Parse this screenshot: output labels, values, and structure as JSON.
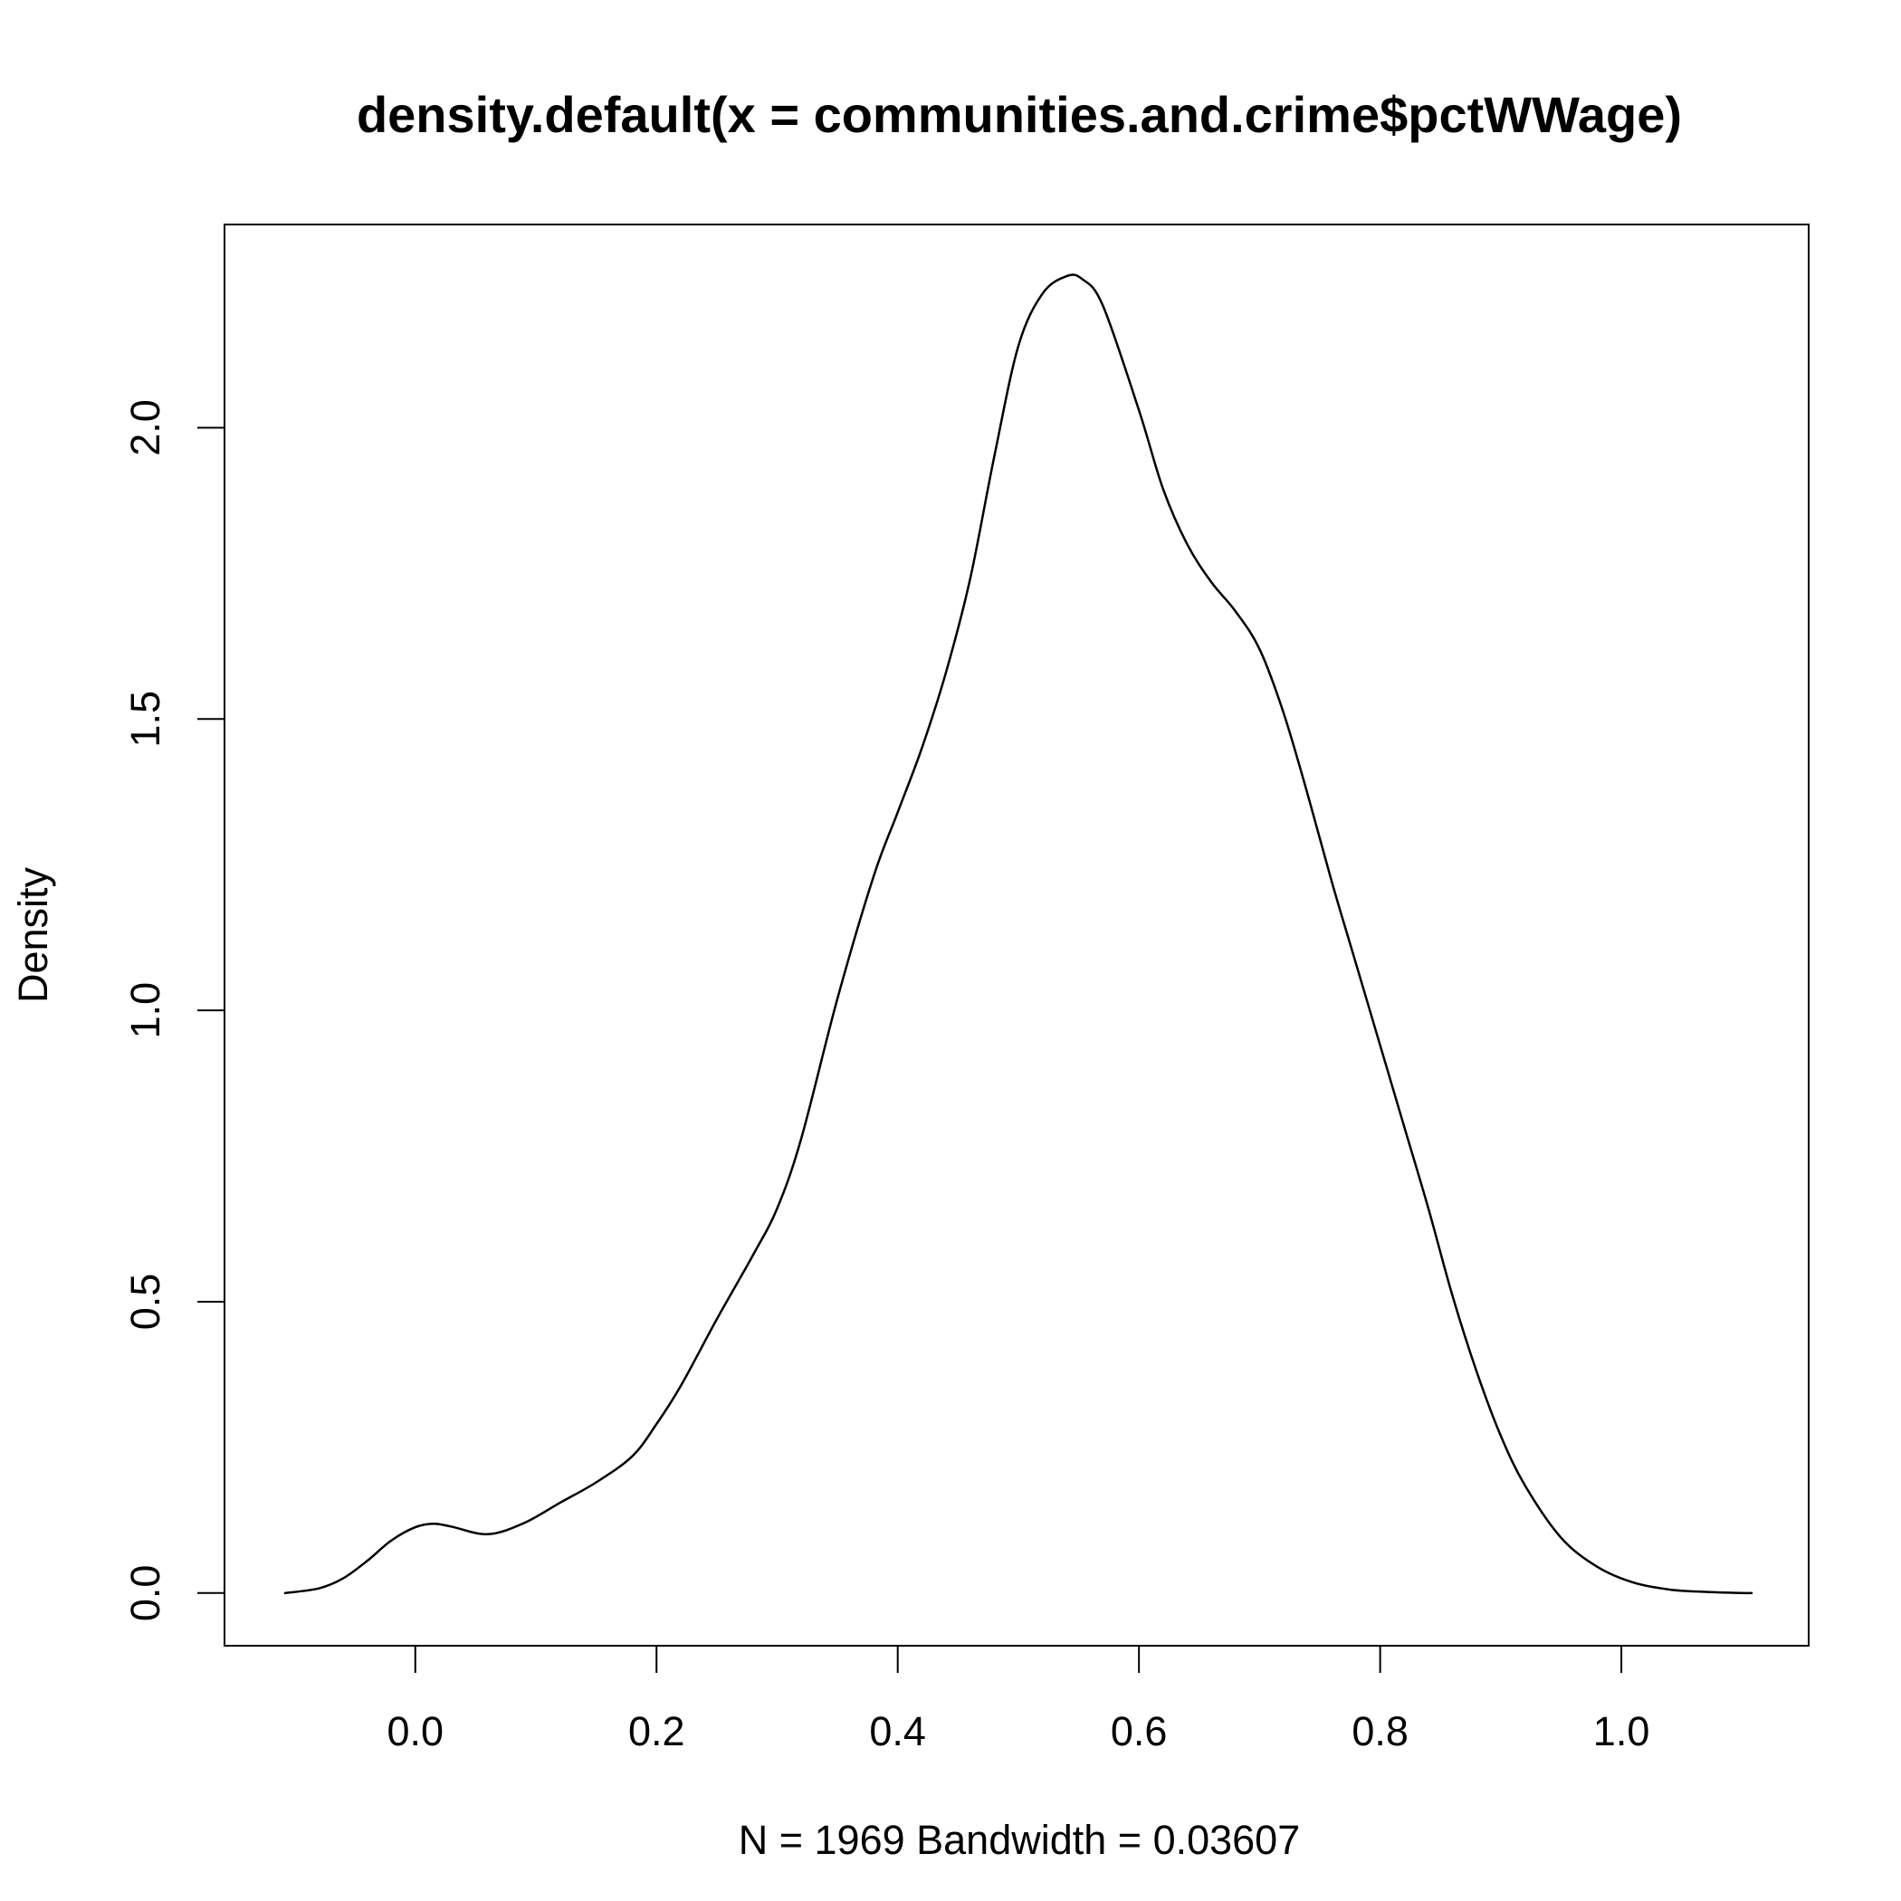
{
  "chart_data": {
    "type": "line",
    "title": "density.default(x = communities.and.crime$pctWWage)",
    "xlabel": "N = 1969   Bandwidth = 0.03607",
    "ylabel": "Density",
    "xlim": [
      -0.1582,
      1.1553
    ],
    "ylim": [
      -0.0904,
      2.3487
    ],
    "x_ticks": [
      0.0,
      0.2,
      0.4,
      0.6,
      0.8,
      1.0
    ],
    "x_tick_labels": [
      "0.0",
      "0.2",
      "0.4",
      "0.6",
      "0.8",
      "1.0"
    ],
    "y_ticks": [
      0.0,
      0.5,
      1.0,
      1.5,
      2.0
    ],
    "y_tick_labels": [
      "0.0",
      "0.5",
      "1.0",
      "1.5",
      "2.0"
    ],
    "grid": false,
    "series": [
      {
        "x": [
          -0.108,
          -0.08,
          -0.06,
          -0.04,
          -0.02,
          0.0,
          0.015,
          0.03,
          0.06,
          0.09,
          0.12,
          0.15,
          0.18,
          0.2,
          0.22,
          0.25,
          0.28,
          0.3,
          0.32,
          0.35,
          0.38,
          0.4,
          0.42,
          0.44,
          0.46,
          0.48,
          0.5,
          0.52,
          0.54,
          0.553,
          0.57,
          0.6,
          0.62,
          0.64,
          0.66,
          0.68,
          0.7,
          0.72,
          0.74,
          0.76,
          0.78,
          0.8,
          0.82,
          0.84,
          0.86,
          0.88,
          0.9,
          0.92,
          0.95,
          0.98,
          1.01,
          1.04,
          1.07,
          1.1,
          1.108
        ],
        "y": [
          0.0,
          0.008,
          0.025,
          0.055,
          0.09,
          0.113,
          0.119,
          0.114,
          0.101,
          0.12,
          0.155,
          0.19,
          0.235,
          0.29,
          0.355,
          0.47,
          0.58,
          0.66,
          0.78,
          1.02,
          1.23,
          1.34,
          1.45,
          1.58,
          1.74,
          1.95,
          2.14,
          2.23,
          2.26,
          2.255,
          2.21,
          2.03,
          1.895,
          1.8,
          1.735,
          1.685,
          1.62,
          1.51,
          1.37,
          1.22,
          1.08,
          0.94,
          0.8,
          0.66,
          0.51,
          0.38,
          0.27,
          0.185,
          0.095,
          0.045,
          0.018,
          0.006,
          0.002,
          0.0,
          0.0
        ]
      }
    ]
  }
}
